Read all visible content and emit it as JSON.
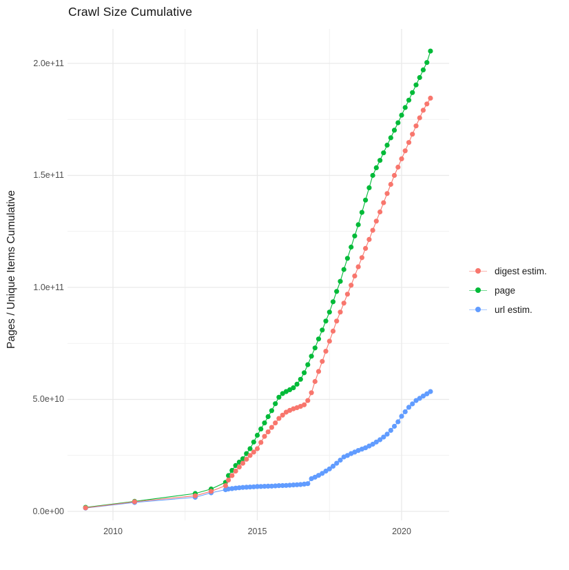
{
  "chart_data": {
    "type": "line",
    "title": "Crawl Size Cumulative",
    "xlabel": "",
    "ylabel": "Pages / Unique Items Cumulative",
    "value_unit": "counts; point values stored in units of 1e9 (billions)",
    "grid": true,
    "legend_position": "right",
    "x_axis": {
      "range": [
        2008.4,
        2021.65
      ],
      "ticks": [
        {
          "year": 2010,
          "label": "2010"
        },
        {
          "year": 2015,
          "label": "2015"
        },
        {
          "year": 2020,
          "label": "2020"
        }
      ],
      "minor_ticks": [
        2012.5,
        2017.5
      ]
    },
    "y_axis": {
      "range_e9": [
        -4,
        215
      ],
      "ticks": [
        {
          "value_e9": 0,
          "label": "0.0e+00"
        },
        {
          "value_e9": 50,
          "label": "5.0e+10"
        },
        {
          "value_e9": 100,
          "label": "1.0e+11"
        },
        {
          "value_e9": 150,
          "label": "1.5e+11"
        },
        {
          "value_e9": 200,
          "label": "2.0e+11"
        }
      ],
      "minor_ticks_e9": [
        25,
        75,
        125,
        175
      ]
    },
    "series": [
      {
        "name": "digest estim.",
        "color": "#F8766D",
        "points": [
          [
            2009.05,
            1.6
          ],
          [
            2010.75,
            4.3
          ],
          [
            2012.85,
            7.0
          ],
          [
            2013.4,
            9.0
          ],
          [
            2013.9,
            11.5
          ],
          [
            2014.0,
            14.0
          ],
          [
            2014.125,
            16.0
          ],
          [
            2014.25,
            18.0
          ],
          [
            2014.375,
            19.8
          ],
          [
            2014.5,
            21.5
          ],
          [
            2014.625,
            23.3
          ],
          [
            2014.75,
            25.0
          ],
          [
            2014.875,
            26.5
          ],
          [
            2015.0,
            28.0
          ],
          [
            2015.125,
            30.8
          ],
          [
            2015.25,
            33.5
          ],
          [
            2015.375,
            35.5
          ],
          [
            2015.5,
            37.5
          ],
          [
            2015.625,
            39.5
          ],
          [
            2015.75,
            41.5
          ],
          [
            2015.875,
            43.0
          ],
          [
            2016.0,
            44.3
          ],
          [
            2016.125,
            45.1
          ],
          [
            2016.25,
            45.8
          ],
          [
            2016.375,
            46.3
          ],
          [
            2016.5,
            46.9
          ],
          [
            2016.625,
            47.6
          ],
          [
            2016.75,
            49.5
          ],
          [
            2016.875,
            53.0
          ],
          [
            2017.0,
            58.0
          ],
          [
            2017.125,
            62.5
          ],
          [
            2017.25,
            67.0
          ],
          [
            2017.375,
            71.5
          ],
          [
            2017.5,
            76.0
          ],
          [
            2017.625,
            80.5
          ],
          [
            2017.75,
            85.0
          ],
          [
            2017.875,
            89.0
          ],
          [
            2018.0,
            93.0
          ],
          [
            2018.125,
            97.0
          ],
          [
            2018.25,
            101.0
          ],
          [
            2018.375,
            105.1
          ],
          [
            2018.5,
            109.2
          ],
          [
            2018.625,
            113.3
          ],
          [
            2018.75,
            117.4
          ],
          [
            2018.875,
            121.4
          ],
          [
            2019.0,
            125.5
          ],
          [
            2019.125,
            129.6
          ],
          [
            2019.25,
            133.7
          ],
          [
            2019.375,
            137.8
          ],
          [
            2019.5,
            141.9
          ],
          [
            2019.625,
            146.0
          ],
          [
            2019.75,
            150.0
          ],
          [
            2019.875,
            153.7
          ],
          [
            2020.0,
            157.4
          ],
          [
            2020.125,
            161.0
          ],
          [
            2020.25,
            164.7
          ],
          [
            2020.375,
            168.4
          ],
          [
            2020.5,
            172.1
          ],
          [
            2020.625,
            175.7
          ],
          [
            2020.75,
            179.1
          ],
          [
            2020.875,
            181.9
          ],
          [
            2021.0,
            184.5
          ]
        ]
      },
      {
        "name": "page",
        "color": "#00BA38",
        "points": [
          [
            2009.05,
            1.8
          ],
          [
            2010.75,
            4.5
          ],
          [
            2012.85,
            8.0
          ],
          [
            2013.4,
            10.0
          ],
          [
            2013.9,
            13.0
          ],
          [
            2014.0,
            16.0
          ],
          [
            2014.125,
            18.3
          ],
          [
            2014.25,
            20.5
          ],
          [
            2014.375,
            22.0
          ],
          [
            2014.5,
            23.5
          ],
          [
            2014.625,
            25.8
          ],
          [
            2014.75,
            28.0
          ],
          [
            2014.875,
            31.0
          ],
          [
            2015.0,
            34.0
          ],
          [
            2015.125,
            36.8
          ],
          [
            2015.25,
            39.5
          ],
          [
            2015.375,
            42.3
          ],
          [
            2015.5,
            45.0
          ],
          [
            2015.625,
            48.1
          ],
          [
            2015.75,
            51.0
          ],
          [
            2015.875,
            52.6
          ],
          [
            2016.0,
            53.5
          ],
          [
            2016.125,
            54.3
          ],
          [
            2016.25,
            55.2
          ],
          [
            2016.375,
            56.8
          ],
          [
            2016.5,
            59.0
          ],
          [
            2016.625,
            61.9
          ],
          [
            2016.75,
            65.5
          ],
          [
            2016.875,
            69.3
          ],
          [
            2017.0,
            73.0
          ],
          [
            2017.125,
            77.0
          ],
          [
            2017.25,
            81.0
          ],
          [
            2017.375,
            85.0
          ],
          [
            2017.5,
            89.0
          ],
          [
            2017.625,
            93.6
          ],
          [
            2017.75,
            98.2
          ],
          [
            2017.875,
            102.7
          ],
          [
            2018.0,
            108.0
          ],
          [
            2018.125,
            113.0
          ],
          [
            2018.25,
            118.0
          ],
          [
            2018.375,
            123.0
          ],
          [
            2018.5,
            128.0
          ],
          [
            2018.625,
            133.5
          ],
          [
            2018.75,
            139.0
          ],
          [
            2018.875,
            144.5
          ],
          [
            2019.0,
            150.0
          ],
          [
            2019.125,
            153.4
          ],
          [
            2019.25,
            156.7
          ],
          [
            2019.375,
            160.1
          ],
          [
            2019.5,
            163.5
          ],
          [
            2019.625,
            166.8
          ],
          [
            2019.75,
            170.2
          ],
          [
            2019.875,
            173.5
          ],
          [
            2020.0,
            176.9
          ],
          [
            2020.125,
            180.3
          ],
          [
            2020.25,
            183.6
          ],
          [
            2020.375,
            187.0
          ],
          [
            2020.5,
            190.4
          ],
          [
            2020.625,
            193.7
          ],
          [
            2020.75,
            197.1
          ],
          [
            2020.875,
            200.4
          ],
          [
            2021.0,
            205.5
          ]
        ]
      },
      {
        "name": "url estim.",
        "color": "#619CFF",
        "points": [
          [
            2009.05,
            1.5
          ],
          [
            2010.75,
            4.0
          ],
          [
            2012.85,
            6.3
          ],
          [
            2013.4,
            8.3
          ],
          [
            2013.9,
            9.7
          ],
          [
            2014.0,
            10.0
          ],
          [
            2014.125,
            10.2
          ],
          [
            2014.25,
            10.4
          ],
          [
            2014.375,
            10.55
          ],
          [
            2014.5,
            10.7
          ],
          [
            2014.625,
            10.8
          ],
          [
            2014.75,
            10.9
          ],
          [
            2014.875,
            11.0
          ],
          [
            2015.0,
            11.1
          ],
          [
            2015.125,
            11.15
          ],
          [
            2015.25,
            11.2
          ],
          [
            2015.375,
            11.25
          ],
          [
            2015.5,
            11.3
          ],
          [
            2015.625,
            11.4
          ],
          [
            2015.75,
            11.5
          ],
          [
            2015.875,
            11.55
          ],
          [
            2016.0,
            11.6
          ],
          [
            2016.125,
            11.7
          ],
          [
            2016.25,
            11.8
          ],
          [
            2016.375,
            11.9
          ],
          [
            2016.5,
            12.0
          ],
          [
            2016.625,
            12.2
          ],
          [
            2016.75,
            12.4
          ],
          [
            2016.875,
            14.6
          ],
          [
            2017.0,
            15.3
          ],
          [
            2017.125,
            16.1
          ],
          [
            2017.25,
            17.0
          ],
          [
            2017.375,
            18.0
          ],
          [
            2017.5,
            19.0
          ],
          [
            2017.625,
            20.2
          ],
          [
            2017.75,
            21.5
          ],
          [
            2017.875,
            22.9
          ],
          [
            2018.0,
            24.3
          ],
          [
            2018.125,
            25.0
          ],
          [
            2018.25,
            25.8
          ],
          [
            2018.375,
            26.5
          ],
          [
            2018.5,
            27.2
          ],
          [
            2018.625,
            27.8
          ],
          [
            2018.75,
            28.4
          ],
          [
            2018.875,
            29.2
          ],
          [
            2019.0,
            30.0
          ],
          [
            2019.125,
            31.0
          ],
          [
            2019.25,
            32.0
          ],
          [
            2019.375,
            33.2
          ],
          [
            2019.5,
            34.5
          ],
          [
            2019.625,
            36.2
          ],
          [
            2019.75,
            38.0
          ],
          [
            2019.875,
            40.0
          ],
          [
            2020.0,
            42.5
          ],
          [
            2020.125,
            44.5
          ],
          [
            2020.25,
            46.5
          ],
          [
            2020.375,
            48.0
          ],
          [
            2020.5,
            49.5
          ],
          [
            2020.625,
            50.5
          ],
          [
            2020.75,
            51.5
          ],
          [
            2020.875,
            52.5
          ],
          [
            2021.0,
            53.5
          ]
        ]
      }
    ],
    "style": {
      "major_grid_color": "#e9e9e9",
      "minor_grid_color": "#f1f1f1",
      "background": "#ffffff"
    }
  }
}
